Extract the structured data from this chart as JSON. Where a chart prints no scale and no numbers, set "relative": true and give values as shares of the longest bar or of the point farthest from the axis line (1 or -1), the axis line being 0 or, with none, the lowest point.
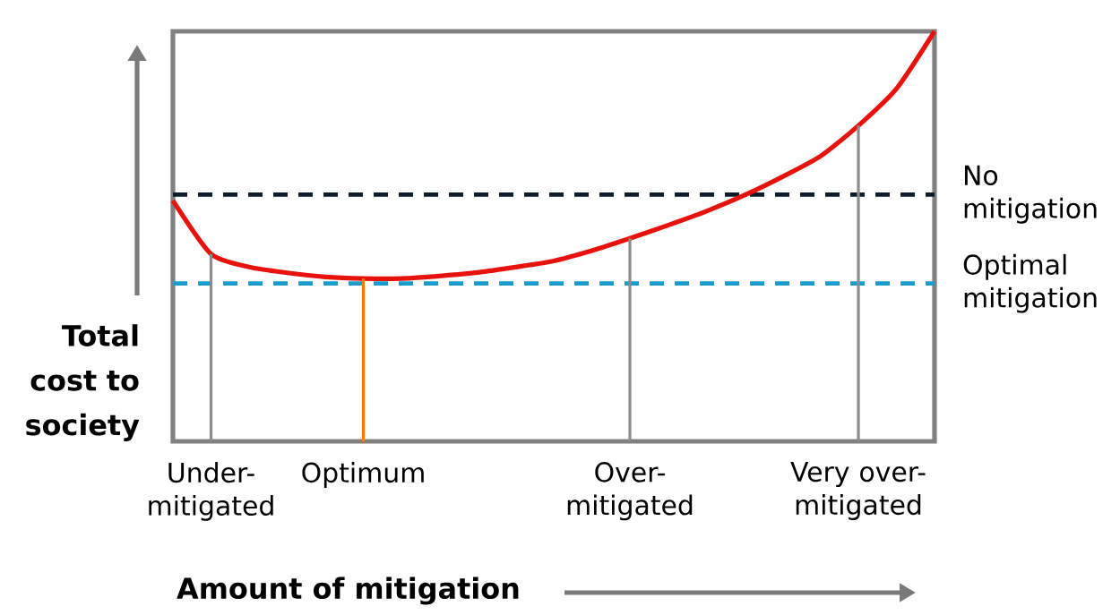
{
  "chart_data": {
    "type": "line",
    "relative": true,
    "xlabel": "Amount of mitigation",
    "ylabel": "Total cost to society",
    "categories": [
      null,
      "Under-mitigated",
      null,
      null,
      null,
      "Optimum",
      null,
      null,
      null,
      null,
      null,
      null,
      "Over-mitigated",
      null,
      null,
      null,
      null,
      null,
      "Very over-mitigated",
      null,
      null
    ],
    "series": [
      {
        "color": "#e8120c",
        "values": [
          0.587,
          0.457,
          0.425,
          0.411,
          0.401,
          0.397,
          0.397,
          0.403,
          0.412,
          0.425,
          0.44,
          0.465,
          0.495,
          0.527,
          0.561,
          0.6,
          0.645,
          0.695,
          0.77,
          0.86,
          1.0
        ]
      },
      {
        "type": "bar",
        "values": [
          null,
          0.457,
          null,
          null,
          null,
          0.397,
          null,
          null,
          null,
          null,
          null,
          null,
          0.495,
          null,
          null,
          null,
          null,
          null,
          0.77,
          null,
          null
        ],
        "colors": [
          null,
          "#8c8c8c",
          null,
          null,
          null,
          "#f57c00",
          null,
          null,
          null,
          null,
          null,
          null,
          "#8c8c8c",
          null,
          null,
          null,
          null,
          null,
          "#8c8c8c",
          null,
          null
        ]
      }
    ],
    "ref_lines": [
      {
        "axis": "y",
        "value": 0.602,
        "label": "No mitigation",
        "color": "#0d1b2e",
        "line_style": "dashed"
      },
      {
        "axis": "y",
        "value": 0.385,
        "label": "Optimal mitigation",
        "color": "#1a9ccc",
        "line_style": "dashed"
      }
    ]
  }
}
